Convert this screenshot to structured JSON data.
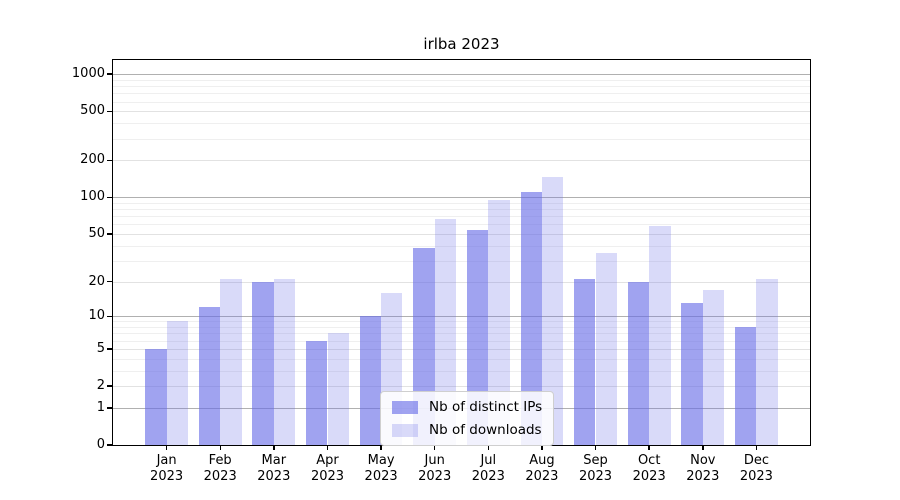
{
  "chart_data": {
    "type": "bar",
    "title": "irlba 2023",
    "x_categories": [
      "Jan\n2023",
      "Feb\n2023",
      "Mar\n2023",
      "Apr\n2023",
      "May\n2023",
      "Jun\n2023",
      "Jul\n2023",
      "Aug\n2023",
      "Sep\n2023",
      "Oct\n2023",
      "Nov\n2023",
      "Dec\n2023"
    ],
    "series": [
      {
        "name": "Nb of distinct IPs",
        "color": "rgba(102,107,230,0.62)",
        "values": [
          5,
          12,
          20,
          6,
          10,
          38,
          54,
          110,
          21,
          20,
          13,
          8
        ]
      },
      {
        "name": "Nb of downloads",
        "color": "rgba(102,107,230,0.25)",
        "values": [
          9,
          21,
          21,
          7,
          16,
          67,
          95,
          145,
          35,
          58,
          17,
          21
        ]
      }
    ],
    "y_axis": {
      "scale": "log10(value+1)",
      "tick_values": [
        0,
        1,
        2,
        5,
        10,
        20,
        50,
        100,
        200,
        500,
        1000
      ],
      "max": 1300,
      "major_grid_values": [
        1,
        10,
        100,
        1000
      ],
      "minor_grid_values": [
        2,
        5,
        20,
        50,
        200,
        500
      ],
      "faint_grid_values": [
        3,
        4,
        6,
        7,
        8,
        9,
        30,
        40,
        60,
        70,
        80,
        90,
        300,
        400,
        600,
        700,
        800,
        900
      ],
      "major_grid_color": "#b0b0b0",
      "minor_grid_color": "#e2e2e2",
      "faint_grid_color": "#efefef"
    },
    "legend": {
      "position": "lower center",
      "entries": [
        "Nb of distinct IPs",
        "Nb of downloads"
      ]
    },
    "colors": {
      "bar_dark_rendered": "#a0a3ef",
      "bar_light_rendered": "#d8daf8",
      "axis": "#000000",
      "background": "#ffffff"
    }
  }
}
